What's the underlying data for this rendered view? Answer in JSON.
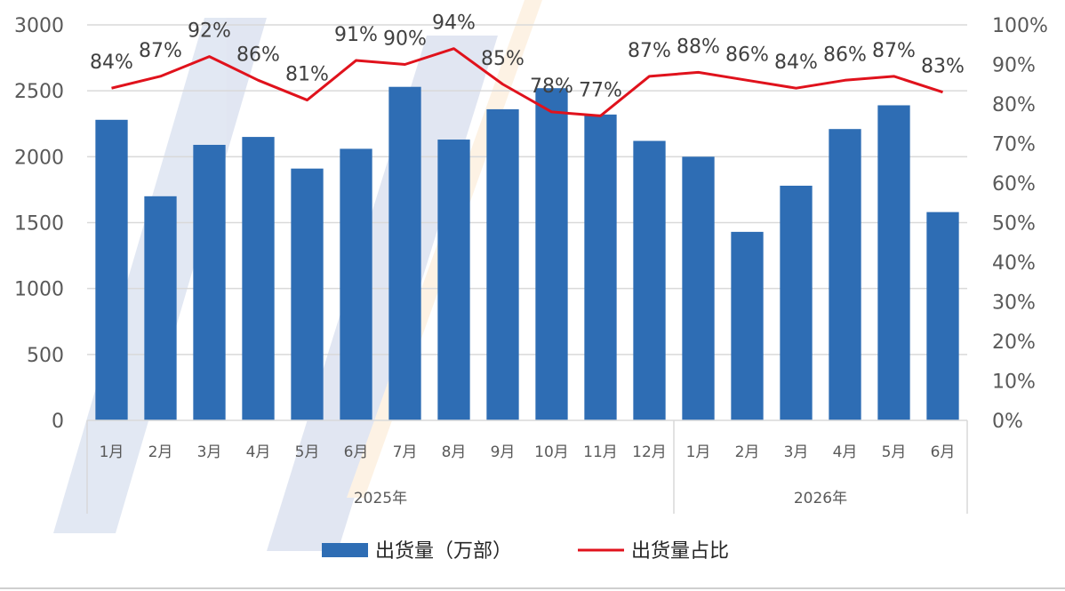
{
  "chart_data": {
    "type": "bar",
    "categories": [
      "1月",
      "2月",
      "3月",
      "4月",
      "5月",
      "6月",
      "7月",
      "8月",
      "9月",
      "10月",
      "11月",
      "12月",
      "1月",
      "2月",
      "3月",
      "4月",
      "5月",
      "6月"
    ],
    "groups": [
      {
        "label": "2025年",
        "count": 12
      },
      {
        "label": "2026年",
        "count": 6
      }
    ],
    "series": [
      {
        "name": "出货量（万部）",
        "type": "bar",
        "axis": "left",
        "color": "#2e6db4",
        "values": [
          2280,
          1700,
          2090,
          2150,
          1910,
          2060,
          2530,
          2130,
          2360,
          2520,
          2320,
          2120,
          2000,
          1430,
          1780,
          2210,
          2390,
          1580
        ]
      },
      {
        "name": "出货量占比",
        "type": "line",
        "axis": "right",
        "color": "#e0121c",
        "values": [
          0.84,
          0.87,
          0.92,
          0.86,
          0.81,
          0.91,
          0.9,
          0.94,
          0.85,
          0.78,
          0.77,
          0.87,
          0.88,
          0.86,
          0.84,
          0.86,
          0.87,
          0.83
        ],
        "labels": [
          "84%",
          "87%",
          "92%",
          "86%",
          "81%",
          "91%",
          "90%",
          "94%",
          "85%",
          "78%",
          "77%",
          "87%",
          "88%",
          "86%",
          "84%",
          "86%",
          "87%",
          "83%"
        ]
      }
    ],
    "y_left": {
      "range": [
        0,
        3000
      ],
      "ticks": [
        "0",
        "500",
        "1000",
        "1500",
        "2000",
        "2500",
        "3000"
      ]
    },
    "y_right": {
      "range": [
        0,
        1
      ],
      "ticks": [
        "0%",
        "10%",
        "20%",
        "30%",
        "40%",
        "50%",
        "60%",
        "70%",
        "80%",
        "90%",
        "100%"
      ]
    },
    "grid": true,
    "legend_position": "bottom"
  }
}
